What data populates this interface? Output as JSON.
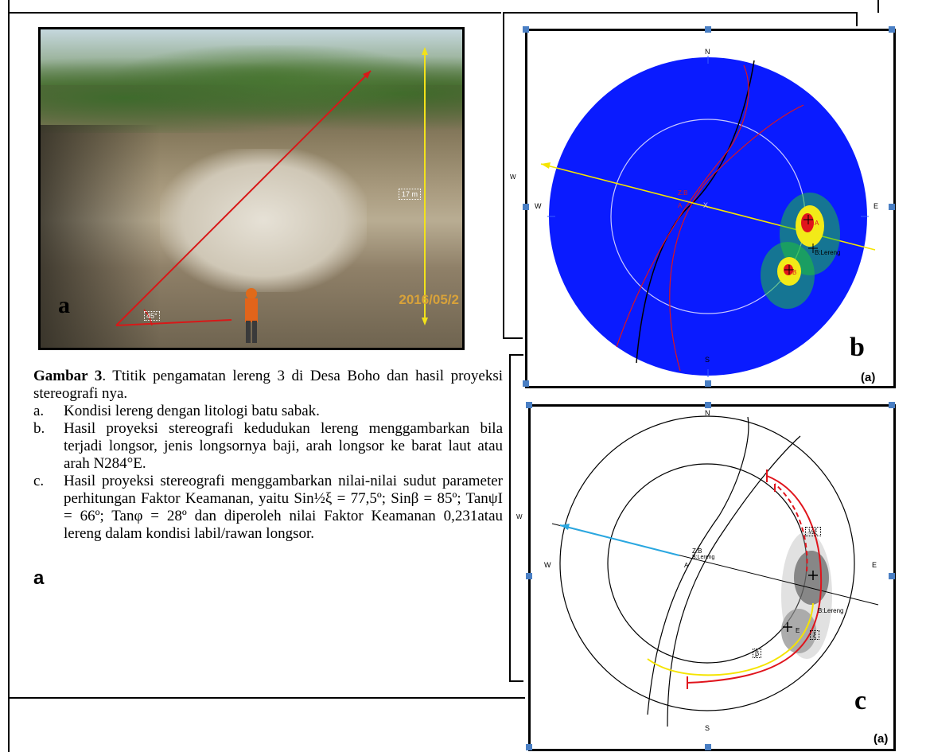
{
  "photo": {
    "panel_letter": "a",
    "height_label": "17 m",
    "angle_label": "45°",
    "date_stamp": "2016/05/2"
  },
  "caption": {
    "figure_label": "Gambar 3",
    "intro": ". Ttitik pengamatan lereng 3 di Desa Boho dan hasil proyeksi stereografi nya.",
    "items": [
      {
        "marker": "a.",
        "text": "Kondisi lereng dengan litologi batu sabak."
      },
      {
        "marker": "b.",
        "text": "Hasil proyeksi stereografi kedudukan lereng menggambarkan bila terjadi longsor, jenis longsornya baji, arah longsor ke barat laut atau arah N284°E."
      },
      {
        "marker": "c.",
        "text": "Hasil proyeksi stereografi menggambarkan nilai-nilai sudut parameter perhitungan Faktor Keamanan, yaitu Sin½ξ = 77,5º; Sinβ = 85º; TanψI = 66º; Tanφ = 28º dan diperoleh nilai Faktor Keamanan 0,231atau lereng dalam kondisi labil/rawan longsor."
      }
    ],
    "stray_letter": "a"
  },
  "stereonet_b": {
    "panel_letter": "b",
    "sub_label": "(a)",
    "north": "N",
    "south": "S",
    "east": "E",
    "west": "W",
    "west_outer": "W",
    "labels": {
      "zb": "Z:B",
      "a": "A",
      "x": "X",
      "pole_a": "A",
      "lereng": "B:Lereng",
      "pole_b": "B"
    }
  },
  "stereonet_c": {
    "panel_letter": "c",
    "sub_label": "(a)",
    "north": "N",
    "south": "S",
    "east": "E",
    "west": "W",
    "west_outer": "W",
    "labels": {
      "zb": "Z:B",
      "lereng_small": "B:Lereng",
      "a": "A",
      "lereng": "B:Lereng",
      "half_xi": "½ξ",
      "xi": "ξ",
      "beta": "β",
      "e": "E"
    }
  },
  "colors": {
    "net_blue": "#0a1bff",
    "red_arc": "#e0141c",
    "yellow": "#f5e400",
    "cyan_arrow": "#2aa7e0"
  }
}
